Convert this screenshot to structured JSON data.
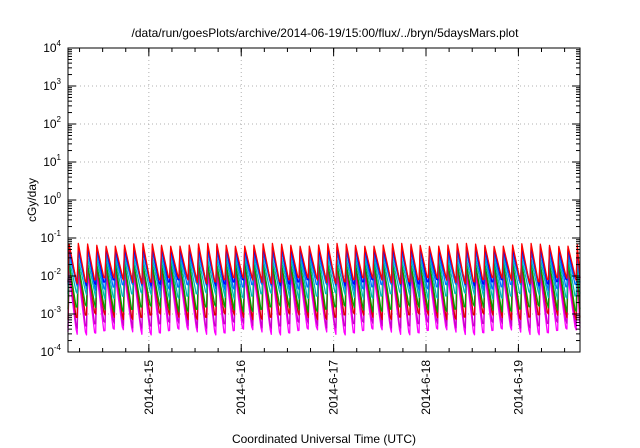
{
  "chart_data": {
    "type": "line",
    "title": "/data/run/goesPlots/archive/2014-06-19/15:00/flux/../bryn/5daysMars.plot",
    "xlabel": "Coordinated Universal Time (UTC)",
    "ylabel": "cGy/day",
    "y_scale": "log",
    "ylim_exponents": [
      -4,
      4
    ],
    "y_ticks": [
      {
        "base": "10",
        "exp": "4"
      },
      {
        "base": "10",
        "exp": "3"
      },
      {
        "base": "10",
        "exp": "2"
      },
      {
        "base": "10",
        "exp": "1"
      },
      {
        "base": "10",
        "exp": "0"
      },
      {
        "base": "10",
        "exp": "-1"
      },
      {
        "base": "10",
        "exp": "-2"
      },
      {
        "base": "10",
        "exp": "-3"
      },
      {
        "base": "10",
        "exp": "-4"
      }
    ],
    "x_range": [
      "2014-06-14T03:00",
      "2014-06-19T16:00"
    ],
    "x_ticks": [
      "2014-6-15",
      "2014-6-16",
      "2014-6-17",
      "2014-6-18",
      "2014-6-19"
    ],
    "grid": true,
    "period_hours": 2.4,
    "note_series": "oscillating sawtooth dose-rate traces; peak/trough levels per series",
    "series": [
      {
        "color": "#ff00ff",
        "peak": 0.01,
        "trough": 0.0004
      },
      {
        "color": "#cc00cc",
        "peak": 0.013,
        "trough": 0.0006
      },
      {
        "color": "#dd0000",
        "peak": 0.018,
        "trough": 0.001
      },
      {
        "color": "#00a000",
        "peak": 0.02,
        "trough": 0.0016
      },
      {
        "color": "#00b8b8",
        "peak": 0.028,
        "trough": 0.0035
      },
      {
        "color": "#0070ff",
        "peak": 0.04,
        "trough": 0.006
      },
      {
        "color": "#0000ff",
        "peak": 0.05,
        "trough": 0.008
      },
      {
        "color": "#ff0000",
        "peak": 0.06,
        "trough": 0.009
      }
    ]
  }
}
